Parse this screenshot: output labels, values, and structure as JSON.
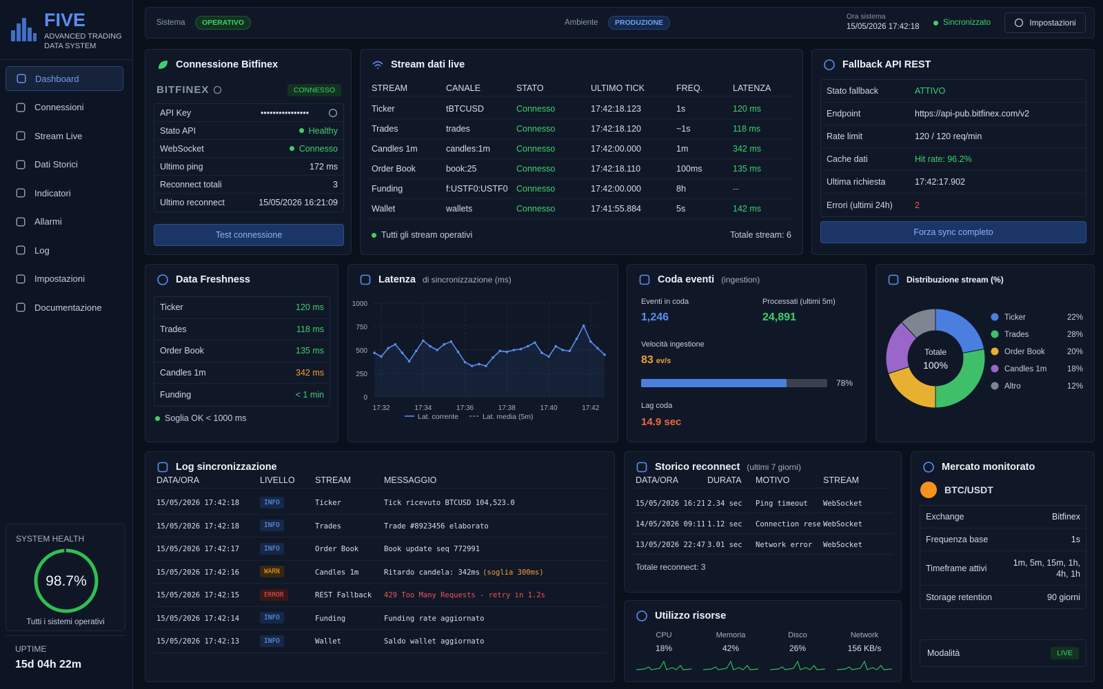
{
  "brand": {
    "name": "FIVE",
    "subtitle": "ADVANCED TRADING DATA SYSTEM"
  },
  "nav": [
    "Dashboard",
    "Connessioni",
    "Stream Live",
    "Dati Storici",
    "Indicatori",
    "Allarmi",
    "Log",
    "Impostazioni",
    "Documentazione"
  ],
  "health": {
    "title": "SYSTEM HEALTH",
    "value": 98.7,
    "label": "98.7%",
    "range": [
      0,
      100
    ],
    "note": "Tutti i sistemi operativi"
  },
  "uptime": {
    "title": "UPTIME",
    "value": "15d 04h 22m"
  },
  "topbar": {
    "system_label": "Sistema",
    "system_status": "OPERATIVO",
    "env_label": "Ambiente",
    "env": "PRODUZIONE",
    "time_label": "Ora sistema",
    "time": "15/05/2026 17:42:18",
    "sync": "Sincronizzato",
    "settings": "Impostazioni"
  },
  "bitfinex": {
    "title": "Connessione Bitfinex",
    "logo": "BITFINEX",
    "status": "CONNESSO",
    "rows": [
      [
        "API Key",
        "••••••••••••••••"
      ],
      [
        "Stato API",
        "Healthy"
      ],
      [
        "WebSocket",
        "Connesso"
      ],
      [
        "Ultimo ping",
        "172 ms"
      ],
      [
        "Reconnect totali",
        "3"
      ],
      [
        "Ultimo reconnect",
        "15/05/2026 16:21:09"
      ]
    ],
    "button": "Test connessione"
  },
  "stream": {
    "title": "Stream dati live",
    "columns": [
      "STREAM",
      "CANALE",
      "STATO",
      "ULTIMO TICK",
      "FREQ.",
      "LATENZA"
    ],
    "rows": [
      [
        "Ticker",
        "tBTCUSD",
        "Connesso",
        "17:42:18.123",
        "1s",
        "120 ms"
      ],
      [
        "Trades",
        "trades",
        "Connesso",
        "17:42:18.120",
        "~1s",
        "118 ms"
      ],
      [
        "Candles 1m",
        "candles:1m",
        "Connesso",
        "17:42:00.000",
        "1m",
        "342 ms"
      ],
      [
        "Order Book",
        "book:25",
        "Connesso",
        "17:42:18.110",
        "100ms",
        "135 ms"
      ],
      [
        "Funding",
        "f:USTF0:USTF0",
        "Connesso",
        "17:42:00.000",
        "8h",
        "--"
      ],
      [
        "Wallet",
        "wallets",
        "Connesso",
        "17:41:55.884",
        "5s",
        "142 ms"
      ]
    ],
    "footer": "Tutti gli stream operativi",
    "total": "Totale stream: 6"
  },
  "fallback": {
    "title": "Fallback API REST",
    "rows": [
      [
        "Stato fallback",
        "ATTIVO"
      ],
      [
        "Endpoint",
        "https://api-pub.bitfinex.com/v2"
      ],
      [
        "Rate limit",
        "120 / 120 req/min"
      ],
      [
        "Cache dati",
        "Hit rate: 96.2%"
      ],
      [
        "Ultima richiesta",
        "17:42:17.902"
      ],
      [
        "Errori (ultimi 24h)",
        "2"
      ]
    ],
    "button": "Forza sync completo"
  },
  "freshness": {
    "title": "Data Freshness",
    "rows": [
      [
        "Ticker",
        "120 ms"
      ],
      [
        "Trades",
        "118 ms"
      ],
      [
        "Order Book",
        "135 ms"
      ],
      [
        "Candles 1m",
        "342 ms"
      ],
      [
        "Funding",
        "< 1 min"
      ]
    ],
    "footer": "Soglia OK < 1000 ms"
  },
  "latency": {
    "type": "line",
    "title": "Latenza",
    "subtitle": "di sincronizzazione (ms)",
    "categories": [
      null,
      "17:32",
      null,
      null,
      null,
      null,
      null,
      "17:34",
      null,
      null,
      null,
      null,
      null,
      "17:36",
      null,
      null,
      null,
      null,
      null,
      "17:38",
      null,
      null,
      null,
      null,
      null,
      "17:40",
      null,
      null,
      null,
      null,
      null,
      "17:42",
      null,
      null
    ],
    "series": [
      {
        "name": "Lat. corrente",
        "color": "#5b8ef0",
        "values": [
          470,
          430,
          520,
          560,
          470,
          380,
          490,
          600,
          540,
          500,
          560,
          590,
          480,
          370,
          330,
          350,
          330,
          420,
          490,
          480,
          500,
          510,
          540,
          580,
          470,
          430,
          540,
          500,
          490,
          620,
          760,
          590,
          520,
          450
        ]
      }
    ],
    "average_label": "Lat. media (5m)",
    "ylim": [
      0,
      1000
    ],
    "yticks": [
      0,
      250,
      500,
      750,
      1000
    ],
    "grid": true
  },
  "queue": {
    "title": "Coda eventi",
    "subtitle": "(ingestion)",
    "queued_label": "Eventi in coda",
    "queued": "1,246",
    "processed_label": "Processati (ultimi 5m)",
    "processed": "24,891",
    "speed_label": "Velocità ingestione",
    "speed": "83",
    "speed_unit": "ev/s",
    "progress": {
      "value": 78,
      "label": "78%",
      "range": [
        0,
        100
      ]
    },
    "lag_label": "Lag coda",
    "lag": "14.9 sec"
  },
  "distribution": {
    "type": "pie",
    "title": "Distribuzione stream (%)",
    "categories": [
      "Ticker",
      "Trades",
      "Order Book",
      "Candles 1m",
      "Altro"
    ],
    "values": [
      22,
      28,
      20,
      18,
      12
    ],
    "value_labels": [
      "22%",
      "28%",
      "20%",
      "18%",
      "12%"
    ],
    "colors": [
      "#4a7fe0",
      "#3fbf6a",
      "#e8b030",
      "#9b66c9",
      "#7d8590"
    ],
    "center_label": "Totale",
    "center_value": "100%"
  },
  "log": {
    "title": "Log sincronizzazione",
    "columns": [
      "DATA/ORA",
      "LIVELLO",
      "STREAM",
      "MESSAGGIO"
    ],
    "rows": [
      [
        "15/05/2026 17:42:18",
        "INFO",
        "Ticker",
        "Tick ricevuto BTCUSD 104,523.0"
      ],
      [
        "15/05/2026 17:42:18",
        "INFO",
        "Trades",
        "Trade #8923456 elaborato"
      ],
      [
        "15/05/2026 17:42:17",
        "INFO",
        "Order Book",
        "Book update seq 772991"
      ],
      [
        "15/05/2026 17:42:16",
        "WARN",
        "Candles 1m",
        "Ritardo candela: 342ms",
        "(soglia 300ms)"
      ],
      [
        "15/05/2026 17:42:15",
        "ERROR",
        "REST Fallback",
        "429 Too Many Requests - retry in 1.2s"
      ],
      [
        "15/05/2026 17:42:14",
        "INFO",
        "Funding",
        "Funding rate aggiornato"
      ],
      [
        "15/05/2026 17:42:13",
        "INFO",
        "Wallet",
        "Saldo wallet aggiornato"
      ]
    ]
  },
  "reconnect": {
    "title": "Storico reconnect",
    "subtitle": "(ultimi 7 giorni)",
    "columns": [
      "DATA/ORA",
      "DURATA",
      "MOTIVO",
      "STREAM"
    ],
    "rows": [
      [
        "15/05/2026 16:21:09",
        "2.34 sec",
        "Ping timeout",
        "WebSocket"
      ],
      [
        "14/05/2026 09:11:42",
        "1.12 sec",
        "Connection reset",
        "WebSocket"
      ],
      [
        "13/05/2026 22:47:31",
        "3.01 sec",
        "Network error",
        "WebSocket"
      ]
    ],
    "footer": "Totale reconnect: 3"
  },
  "resources": {
    "title": "Utilizzo risorse",
    "items": [
      [
        "CPU",
        "18%"
      ],
      [
        "Memoria",
        "42%"
      ],
      [
        "Disco",
        "26%"
      ],
      [
        "Network",
        "156 KB/s"
      ]
    ]
  },
  "market": {
    "title": "Mercato monitorato",
    "pair": "BTC/USDT",
    "rows": [
      [
        "Exchange",
        "Bitfinex"
      ],
      [
        "Frequenza base",
        "1s"
      ],
      [
        "Timeframe attivi",
        "1m, 5m, 15m, 1h, 4h, 1h"
      ],
      [
        "Storage retention",
        "90 giorni"
      ]
    ],
    "mode_label": "Modalità",
    "mode": "LIVE"
  }
}
